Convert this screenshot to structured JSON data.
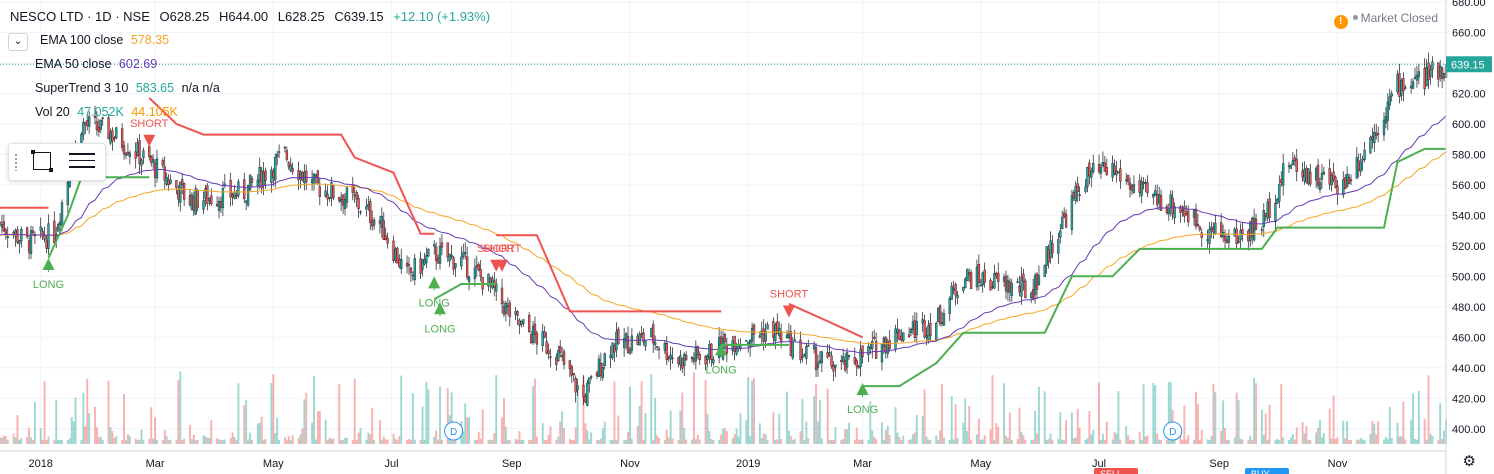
{
  "header": {
    "symbol": "NESCO LTD · 1D · NSE",
    "open": "O628.25",
    "high": "H644.00",
    "low": "L628.25",
    "close": "C639.15",
    "change": "+12.10 (+1.93%)"
  },
  "market_status": "Market Closed",
  "indicators": [
    {
      "label": "EMA 100 close",
      "value": "578.35",
      "color": "#f5a623"
    },
    {
      "label": "EMA 50 close",
      "value": "602.69",
      "color": "#673ab7"
    },
    {
      "label": "SuperTrend 3 10",
      "value": "583.65",
      "extra": "n/a  n/a",
      "color": "#26a69a"
    },
    {
      "label": "Vol 20",
      "value": "47.052K",
      "value2": "44.105K",
      "color": "#26a69a",
      "color2": "#ff9800"
    }
  ],
  "icons": [
    "warning-icon",
    "chevron-down-icon",
    "drag-handle-icon",
    "rectangle-tool-icon",
    "list-tool-icon",
    "settings-gear-icon"
  ],
  "chart_data": {
    "type": "candlestick",
    "ylim": [
      390,
      680
    ],
    "y_ticks": [
      "680.00",
      "660.00",
      "640.00",
      "620.00",
      "600.00",
      "580.00",
      "560.00",
      "540.00",
      "520.00",
      "500.00",
      "480.00",
      "460.00",
      "440.00",
      "420.00",
      "400.00"
    ],
    "x_ticks": [
      "2018",
      "Mar",
      "May",
      "Jul",
      "Sep",
      "Nov",
      "2019",
      "Mar",
      "May",
      "Jul",
      "Sep",
      "Nov"
    ],
    "last_price": "639.15",
    "last_value": 639.15,
    "signals": [
      {
        "label": "LONG",
        "date": "2018-01-05",
        "price": 512
      },
      {
        "label": "SHORT",
        "date": "2018-02-26",
        "price": 585
      },
      {
        "label": "LONG",
        "date": "2018-07-23",
        "price": 500
      },
      {
        "label": "LONG",
        "date": "2018-07-26",
        "price": 483
      },
      {
        "label": "SHORT",
        "date": "2018-08-24",
        "price": 503
      },
      {
        "label": "SHORT",
        "date": "2018-08-27",
        "price": 503
      },
      {
        "label": "LONG",
        "date": "2018-12-18",
        "price": 456
      },
      {
        "label": "SHORT",
        "date": "2019-01-22",
        "price": 473
      },
      {
        "label": "LONG",
        "date": "2019-03-01",
        "price": 430
      }
    ],
    "dividend_markers": [
      {
        "label": "D",
        "date": "2018-08-02"
      },
      {
        "label": "D",
        "date": "2019-08-08"
      }
    ],
    "bottom_labels": [
      "SELL",
      "BUY"
    ],
    "series": [
      {
        "name": "EMA 100 close",
        "last": 578.35
      },
      {
        "name": "EMA 50 close",
        "last": 602.69
      },
      {
        "name": "SuperTrend 3 10",
        "last": 583.65
      }
    ]
  }
}
